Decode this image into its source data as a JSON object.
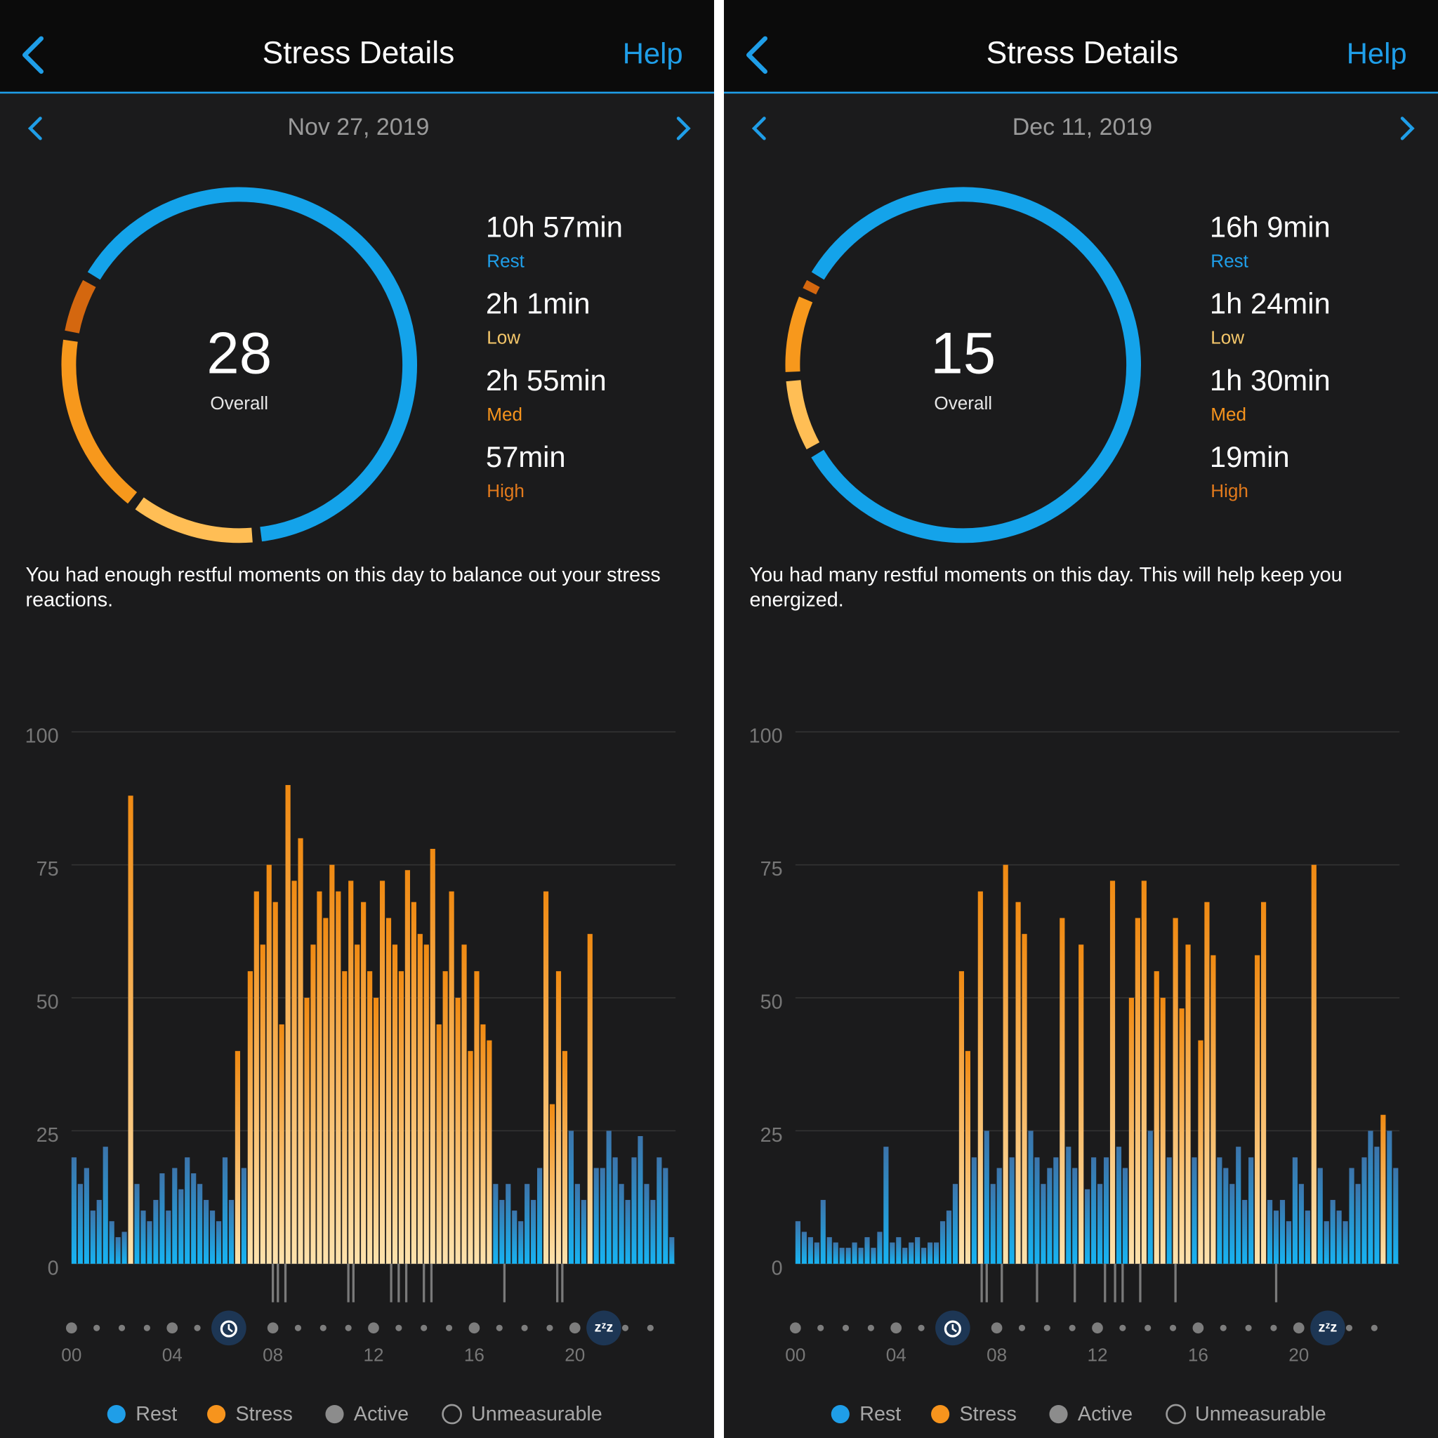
{
  "screens": [
    {
      "header": {
        "title": "Stress Details",
        "help": "Help"
      },
      "date": "Nov 27, 2019",
      "ring": {
        "overall": 28,
        "label": "Overall"
      },
      "stats": [
        {
          "label": "Rest",
          "value": 657,
          "value_label": "10h 57min",
          "color": "#1f9ee8",
          "ring_color": "#14a3ea"
        },
        {
          "label": "Low",
          "value": 121,
          "value_label": "2h 1min",
          "color": "#f5c76a",
          "ring_color": "#ffbe55"
        },
        {
          "label": "Med",
          "value": 175,
          "value_label": "2h 55min",
          "color": "#f7941d",
          "ring_color": "#f7981c"
        },
        {
          "label": "High",
          "value": 57,
          "value_label": "57min",
          "color": "#e27a1c",
          "ring_color": "#d4670f"
        }
      ],
      "message": "You had enough restful moments on this day to balance out your stress reactions.",
      "legend": [
        {
          "name": "Rest",
          "color": "#1f9ee8",
          "filled": true
        },
        {
          "name": "Stress",
          "color": "#f7941d",
          "filled": true
        },
        {
          "name": "Active",
          "color": "#8c8c8c",
          "filled": true
        },
        {
          "name": "Unmeasurable",
          "color": "#9a9a9a",
          "filled": false
        }
      ]
    },
    {
      "header": {
        "title": "Stress Details",
        "help": "Help"
      },
      "date": "Dec 11, 2019",
      "ring": {
        "overall": 15,
        "label": "Overall"
      },
      "stats": [
        {
          "label": "Rest",
          "value": 969,
          "value_label": "16h 9min",
          "color": "#1f9ee8",
          "ring_color": "#14a3ea"
        },
        {
          "label": "Low",
          "value": 84,
          "value_label": "1h 24min",
          "color": "#f5c76a",
          "ring_color": "#ffbe55"
        },
        {
          "label": "Med",
          "value": 90,
          "value_label": "1h 30min",
          "color": "#f7941d",
          "ring_color": "#f7981c"
        },
        {
          "label": "High",
          "value": 19,
          "value_label": "19min",
          "color": "#e27a1c",
          "ring_color": "#d4670f"
        }
      ],
      "message": "You had many restful moments on this day. This will help keep you energized.",
      "legend": [
        {
          "name": "Rest",
          "color": "#1f9ee8",
          "filled": true
        },
        {
          "name": "Stress",
          "color": "#f7941d",
          "filled": true
        },
        {
          "name": "Active",
          "color": "#8c8c8c",
          "filled": true
        },
        {
          "name": "Unmeasurable",
          "color": "#9a9a9a",
          "filled": false
        }
      ]
    }
  ],
  "chart_data": [
    {
      "type": "bar",
      "ylim": [
        0,
        100
      ],
      "yticks": [
        0,
        25,
        50,
        75,
        100
      ],
      "xlim": [
        0,
        24
      ],
      "xticks": [
        {
          "value": 0,
          "label": "00"
        },
        {
          "value": 4,
          "label": "04"
        },
        {
          "value": 8,
          "label": "08"
        },
        12,
        16,
        20
      ],
      "grid": true,
      "stress_threshold": 25,
      "colors": {
        "rest": "#1f9ee8",
        "stress": "#f7941d",
        "active": "#7a7a7a"
      },
      "values": [
        20,
        15,
        18,
        10,
        12,
        22,
        8,
        5,
        6,
        88,
        15,
        10,
        8,
        12,
        17,
        10,
        18,
        14,
        20,
        17,
        15,
        12,
        10,
        8,
        20,
        12,
        40,
        18,
        55,
        70,
        60,
        75,
        68,
        45,
        90,
        72,
        80,
        50,
        60,
        70,
        65,
        75,
        70,
        55,
        72,
        60,
        68,
        55,
        50,
        72,
        65,
        60,
        55,
        74,
        68,
        62,
        60,
        78,
        45,
        55,
        70,
        50,
        60,
        40,
        55,
        45,
        42,
        15,
        12,
        15,
        10,
        8,
        15,
        12,
        18,
        70,
        30,
        55,
        40,
        25,
        15,
        12,
        62,
        18,
        18,
        25,
        20,
        15,
        12,
        20,
        24,
        15,
        12,
        20,
        18,
        5
      ],
      "active_hours": [
        8.0,
        8.2,
        8.5,
        11.0,
        11.2,
        12.7,
        13.0,
        13.3,
        14.0,
        14.3,
        17.2,
        19.3,
        19.5
      ],
      "wake_hour": 6.25,
      "sleep_hour": 21.15,
      "sleep_icon_text": "zᶻz"
    },
    {
      "type": "bar",
      "ylim": [
        0,
        100
      ],
      "yticks": [
        0,
        25,
        50,
        75,
        100
      ],
      "xlim": [
        0,
        24
      ],
      "xticks": [
        {
          "value": 0,
          "label": "00"
        },
        {
          "value": 4,
          "label": "04"
        },
        {
          "value": 8,
          "label": "08"
        },
        12,
        16,
        20
      ],
      "grid": true,
      "stress_threshold": 25,
      "colors": {
        "rest": "#1f9ee8",
        "stress": "#f7941d",
        "active": "#7a7a7a"
      },
      "values": [
        8,
        6,
        5,
        4,
        12,
        5,
        4,
        3,
        3,
        4,
        3,
        5,
        3,
        6,
        22,
        4,
        5,
        3,
        4,
        5,
        3,
        4,
        4,
        8,
        10,
        15,
        55,
        40,
        20,
        70,
        25,
        15,
        18,
        75,
        20,
        68,
        62,
        25,
        20,
        15,
        18,
        20,
        65,
        22,
        18,
        60,
        14,
        20,
        15,
        20,
        72,
        22,
        18,
        50,
        65,
        72,
        25,
        55,
        50,
        20,
        65,
        48,
        60,
        20,
        42,
        68,
        58,
        20,
        18,
        15,
        22,
        12,
        20,
        58,
        68,
        12,
        10,
        12,
        8,
        20,
        15,
        10,
        75,
        18,
        8,
        12,
        10,
        8,
        18,
        15,
        20,
        25,
        22,
        28,
        25,
        18
      ],
      "active_hours": [
        7.4,
        7.6,
        8.2,
        9.6,
        11.1,
        12.3,
        12.7,
        13.0,
        13.7,
        15.1,
        19.1
      ],
      "wake_hour": 6.25,
      "sleep_hour": 21.15,
      "sleep_icon_text": "zᶻz"
    }
  ]
}
